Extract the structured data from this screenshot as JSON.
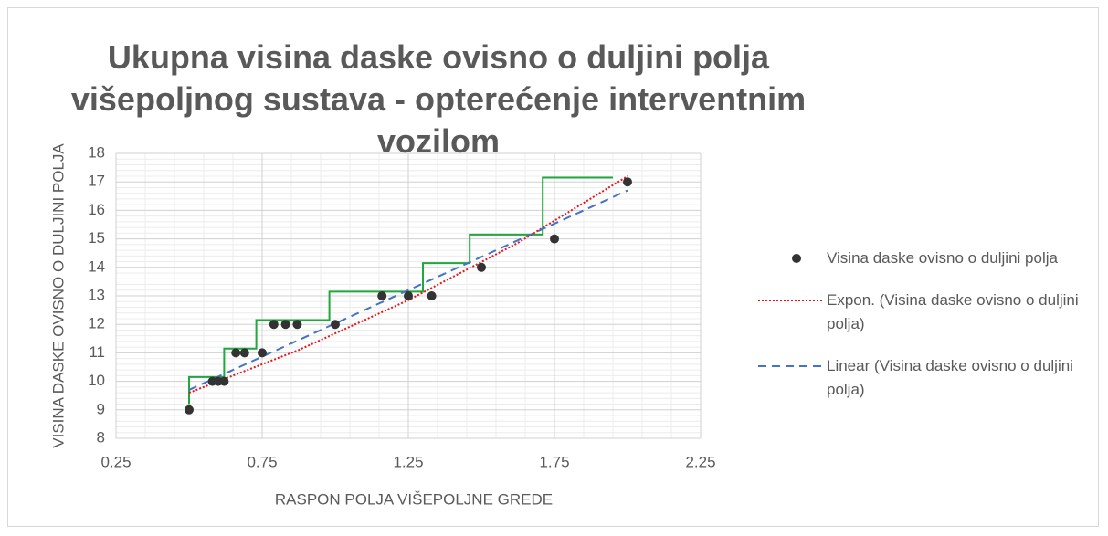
{
  "chart_data": {
    "type": "scatter",
    "title": "Ukupna visina daske ovisno o duljini polja višepoljnog sustava - opterećenje interventnim vozilom",
    "x_label": "RASPON POLJA VIŠEPOLJNE GREDE",
    "y_label": "VISINA DASKE OVISNO O DULJINI POLJA",
    "xlim": [
      0.25,
      2.25
    ],
    "xticks": [
      0.25,
      0.75,
      1.25,
      1.75,
      2.25
    ],
    "ylim": [
      8,
      18
    ],
    "yticks": [
      8,
      9,
      10,
      11,
      12,
      13,
      14,
      15,
      16,
      17,
      18
    ],
    "grid": true,
    "minor_grid": true,
    "legend": "right",
    "series": [
      {
        "name": "Visina daske ovisno o duljini polja",
        "kind": "points",
        "color": "#333333",
        "x": [
          0.5,
          0.58,
          0.6,
          0.62,
          0.66,
          0.69,
          0.75,
          0.79,
          0.83,
          0.87,
          1.0,
          1.16,
          1.25,
          1.33,
          1.5,
          1.75,
          2.0
        ],
        "values": [
          9,
          10,
          10,
          10,
          11,
          11,
          11,
          12,
          12,
          12,
          12,
          13,
          13,
          13,
          14,
          15,
          17
        ]
      },
      {
        "name": "Expon. (Visina daske ovisno o duljini polja)",
        "kind": "line",
        "style": "dotted",
        "color": "#e8141a",
        "x": [
          0.5,
          0.875,
          1.25,
          1.625,
          2.0
        ],
        "values": [
          9.6,
          11.1,
          12.85,
          14.86,
          17.2
        ]
      },
      {
        "name": "Linear (Visina daske ovisno o duljini polja)",
        "kind": "line",
        "style": "dashed",
        "color": "#4472c4",
        "x": [
          0.5,
          2.0
        ],
        "values": [
          9.7,
          16.7
        ]
      },
      {
        "kind": "line",
        "style": "solid",
        "color": "#1fa83c",
        "x": [
          0.5,
          0.5,
          0.62,
          0.62,
          0.73,
          0.73,
          0.98,
          0.98,
          1.3,
          1.3,
          1.46,
          1.46,
          1.71,
          1.71,
          1.95
        ],
        "values": [
          9.2,
          10.15,
          10.15,
          11.15,
          11.15,
          12.15,
          12.15,
          13.15,
          13.15,
          14.15,
          14.15,
          15.15,
          15.15,
          17.15,
          17.15
        ]
      }
    ]
  }
}
